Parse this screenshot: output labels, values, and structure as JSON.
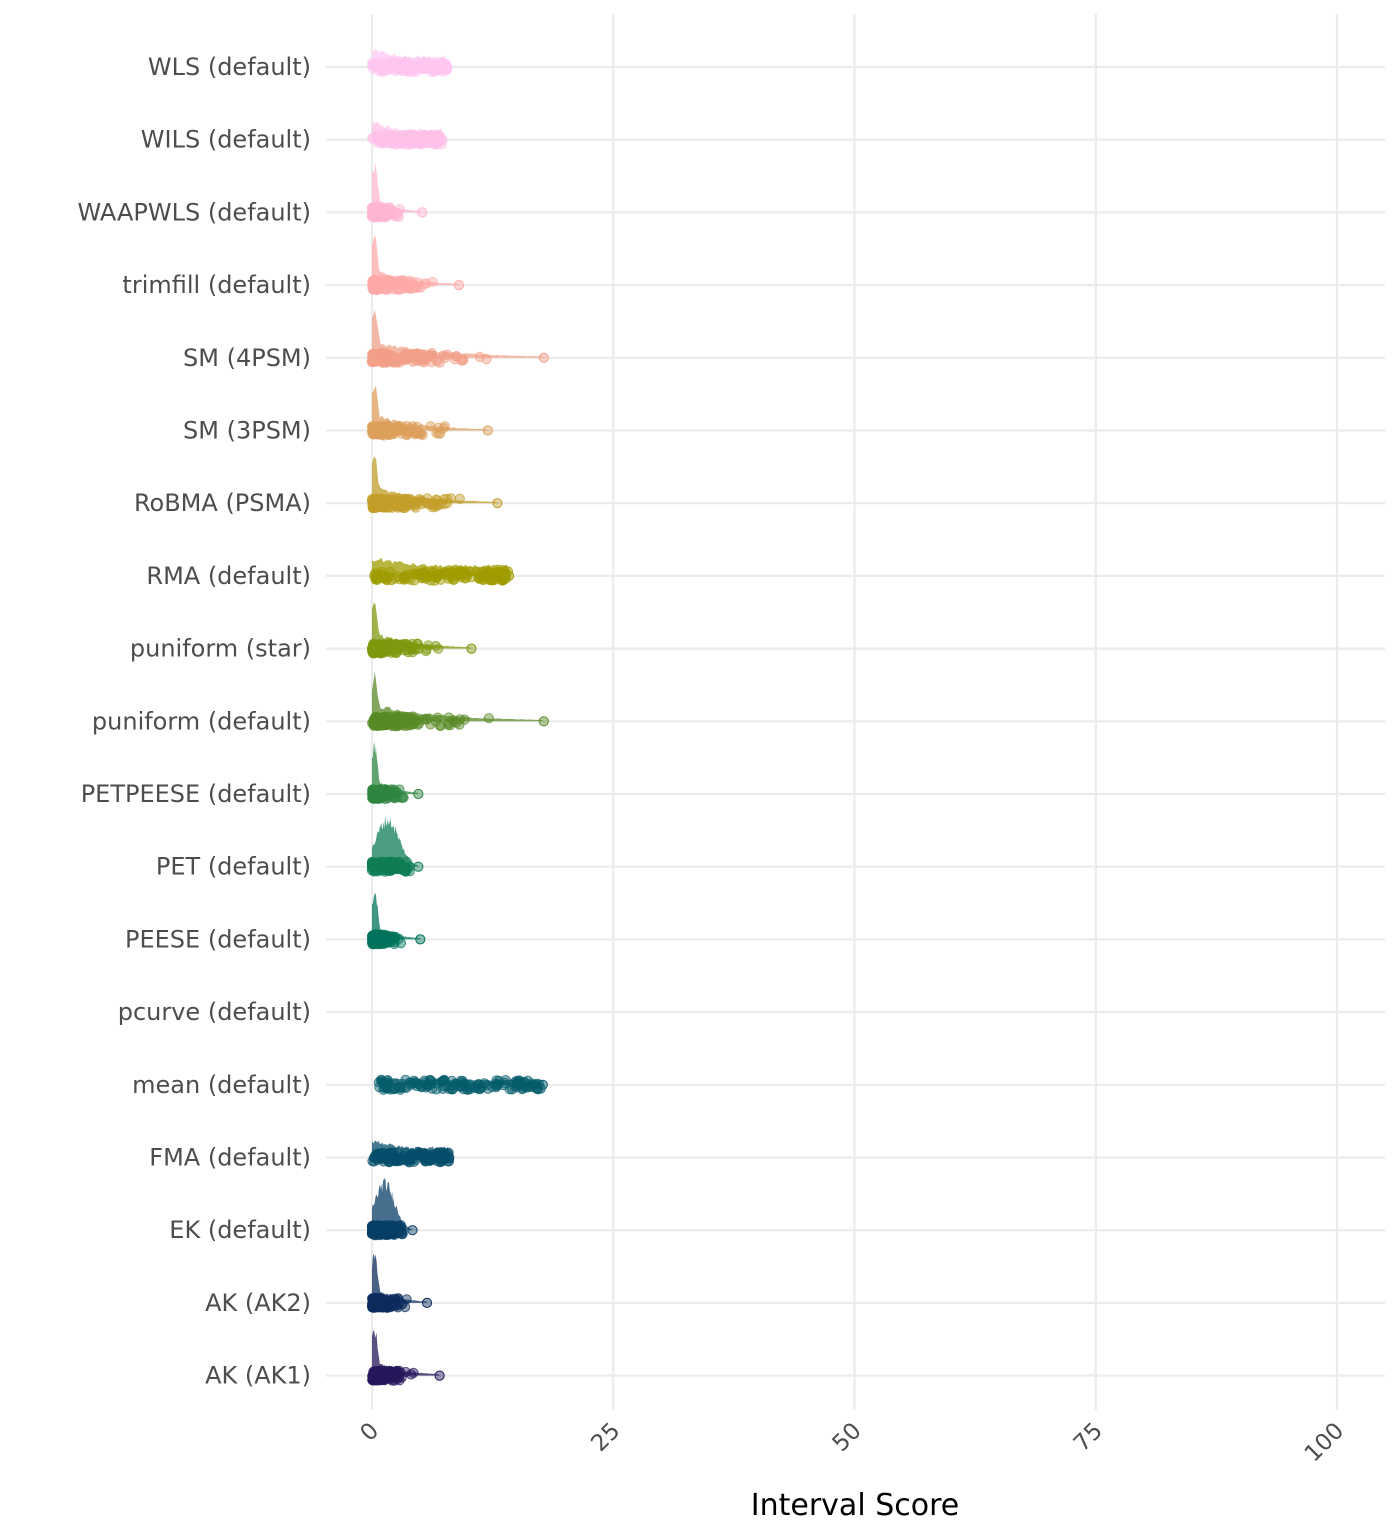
{
  "chart_data": {
    "type": "raincloud",
    "xlabel": "Interval Score",
    "ylabel": "",
    "xlim": [
      0,
      100
    ],
    "x_ticks": [
      0,
      25,
      50,
      75,
      100
    ],
    "grid": true,
    "legend": "none",
    "methods": [
      {
        "label": "WLS (default)",
        "color": "#FFC6F0",
        "shape": "flat",
        "max": 7.8,
        "mode": 0.5
      },
      {
        "label": "WILS (default)",
        "color": "#FFC0E8",
        "shape": "flat",
        "max": 7.3,
        "mode": 0.5
      },
      {
        "label": "WAAPWLS (default)",
        "color": "#FFB5D3",
        "shape": "skewed",
        "max": 5.2,
        "mode": 0.1
      },
      {
        "label": "trimfill (default)",
        "color": "#FFA9A8",
        "shape": "skewed",
        "max": 9.0,
        "mode": 0.1
      },
      {
        "label": "SM (4PSM)",
        "color": "#F2A088",
        "shape": "skewed",
        "max": 17.8,
        "mode": 0.1
      },
      {
        "label": "SM (3PSM)",
        "color": "#DD9F5C",
        "shape": "skewed",
        "max": 12.0,
        "mode": 0.1
      },
      {
        "label": "RoBMA (PSMA)",
        "color": "#C39E2A",
        "shape": "skewed",
        "max": 13.0,
        "mode": 0.1
      },
      {
        "label": "RMA (default)",
        "color": "#A09C00",
        "shape": "flat",
        "max": 14.2,
        "mode": 0.3
      },
      {
        "label": "puniform (star)",
        "color": "#7F9A0F",
        "shape": "skewed",
        "max": 10.3,
        "mode": 0.1
      },
      {
        "label": "puniform (default)",
        "color": "#598A25",
        "shape": "skewed",
        "max": 17.8,
        "mode": 0.1
      },
      {
        "label": "PETPEESE (default)",
        "color": "#2E8640",
        "shape": "skewed",
        "max": 4.8,
        "mode": 0.1
      },
      {
        "label": "PET (default)",
        "color": "#107E56",
        "shape": "hump",
        "max": 4.8,
        "mode": 1.6
      },
      {
        "label": "PEESE (default)",
        "color": "#00735C",
        "shape": "skewed",
        "max": 5.0,
        "mode": 0.1
      },
      {
        "label": "pcurve (default)",
        "color": "#00685F",
        "shape": "none",
        "max": 0,
        "mode": 0
      },
      {
        "label": "mean (default)",
        "color": "#055D6B",
        "shape": "flat",
        "max": 17.7,
        "mode": 0.7
      },
      {
        "label": "FMA (default)",
        "color": "#044E6B",
        "shape": "flat",
        "max": 8.0,
        "mode": 0.1
      },
      {
        "label": "EK (default)",
        "color": "#073F66",
        "shape": "hump",
        "max": 4.2,
        "mode": 1.3
      },
      {
        "label": "AK (AK2)",
        "color": "#0E2C5E",
        "shape": "skewed",
        "max": 5.7,
        "mode": 0.1
      },
      {
        "label": "AK (AK1)",
        "color": "#27175A",
        "shape": "skewed",
        "max": 7.0,
        "mode": 0.1
      }
    ]
  }
}
